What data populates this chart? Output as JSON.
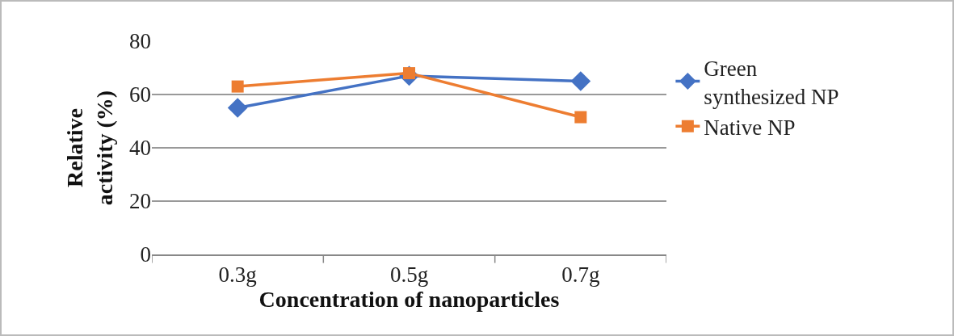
{
  "chart_data": {
    "type": "line",
    "xlabel": "Concentration of nanoparticles",
    "ylabel": "Relative activity (%)",
    "categories": [
      "0.3g",
      "0.5g",
      "0.7g"
    ],
    "series": [
      {
        "name": "Green synthesized NP",
        "color": "#4472c4",
        "values": [
          55,
          67,
          65
        ],
        "marker": "diamond"
      },
      {
        "name": "Native NP",
        "color": "#ed7d31",
        "values": [
          63,
          68,
          51.5
        ],
        "marker": "square"
      }
    ],
    "ylim": [
      0,
      80
    ],
    "yticks": [
      0,
      20,
      40,
      60,
      80
    ],
    "grid": "y",
    "legend": "right",
    "line_style": "solid"
  }
}
